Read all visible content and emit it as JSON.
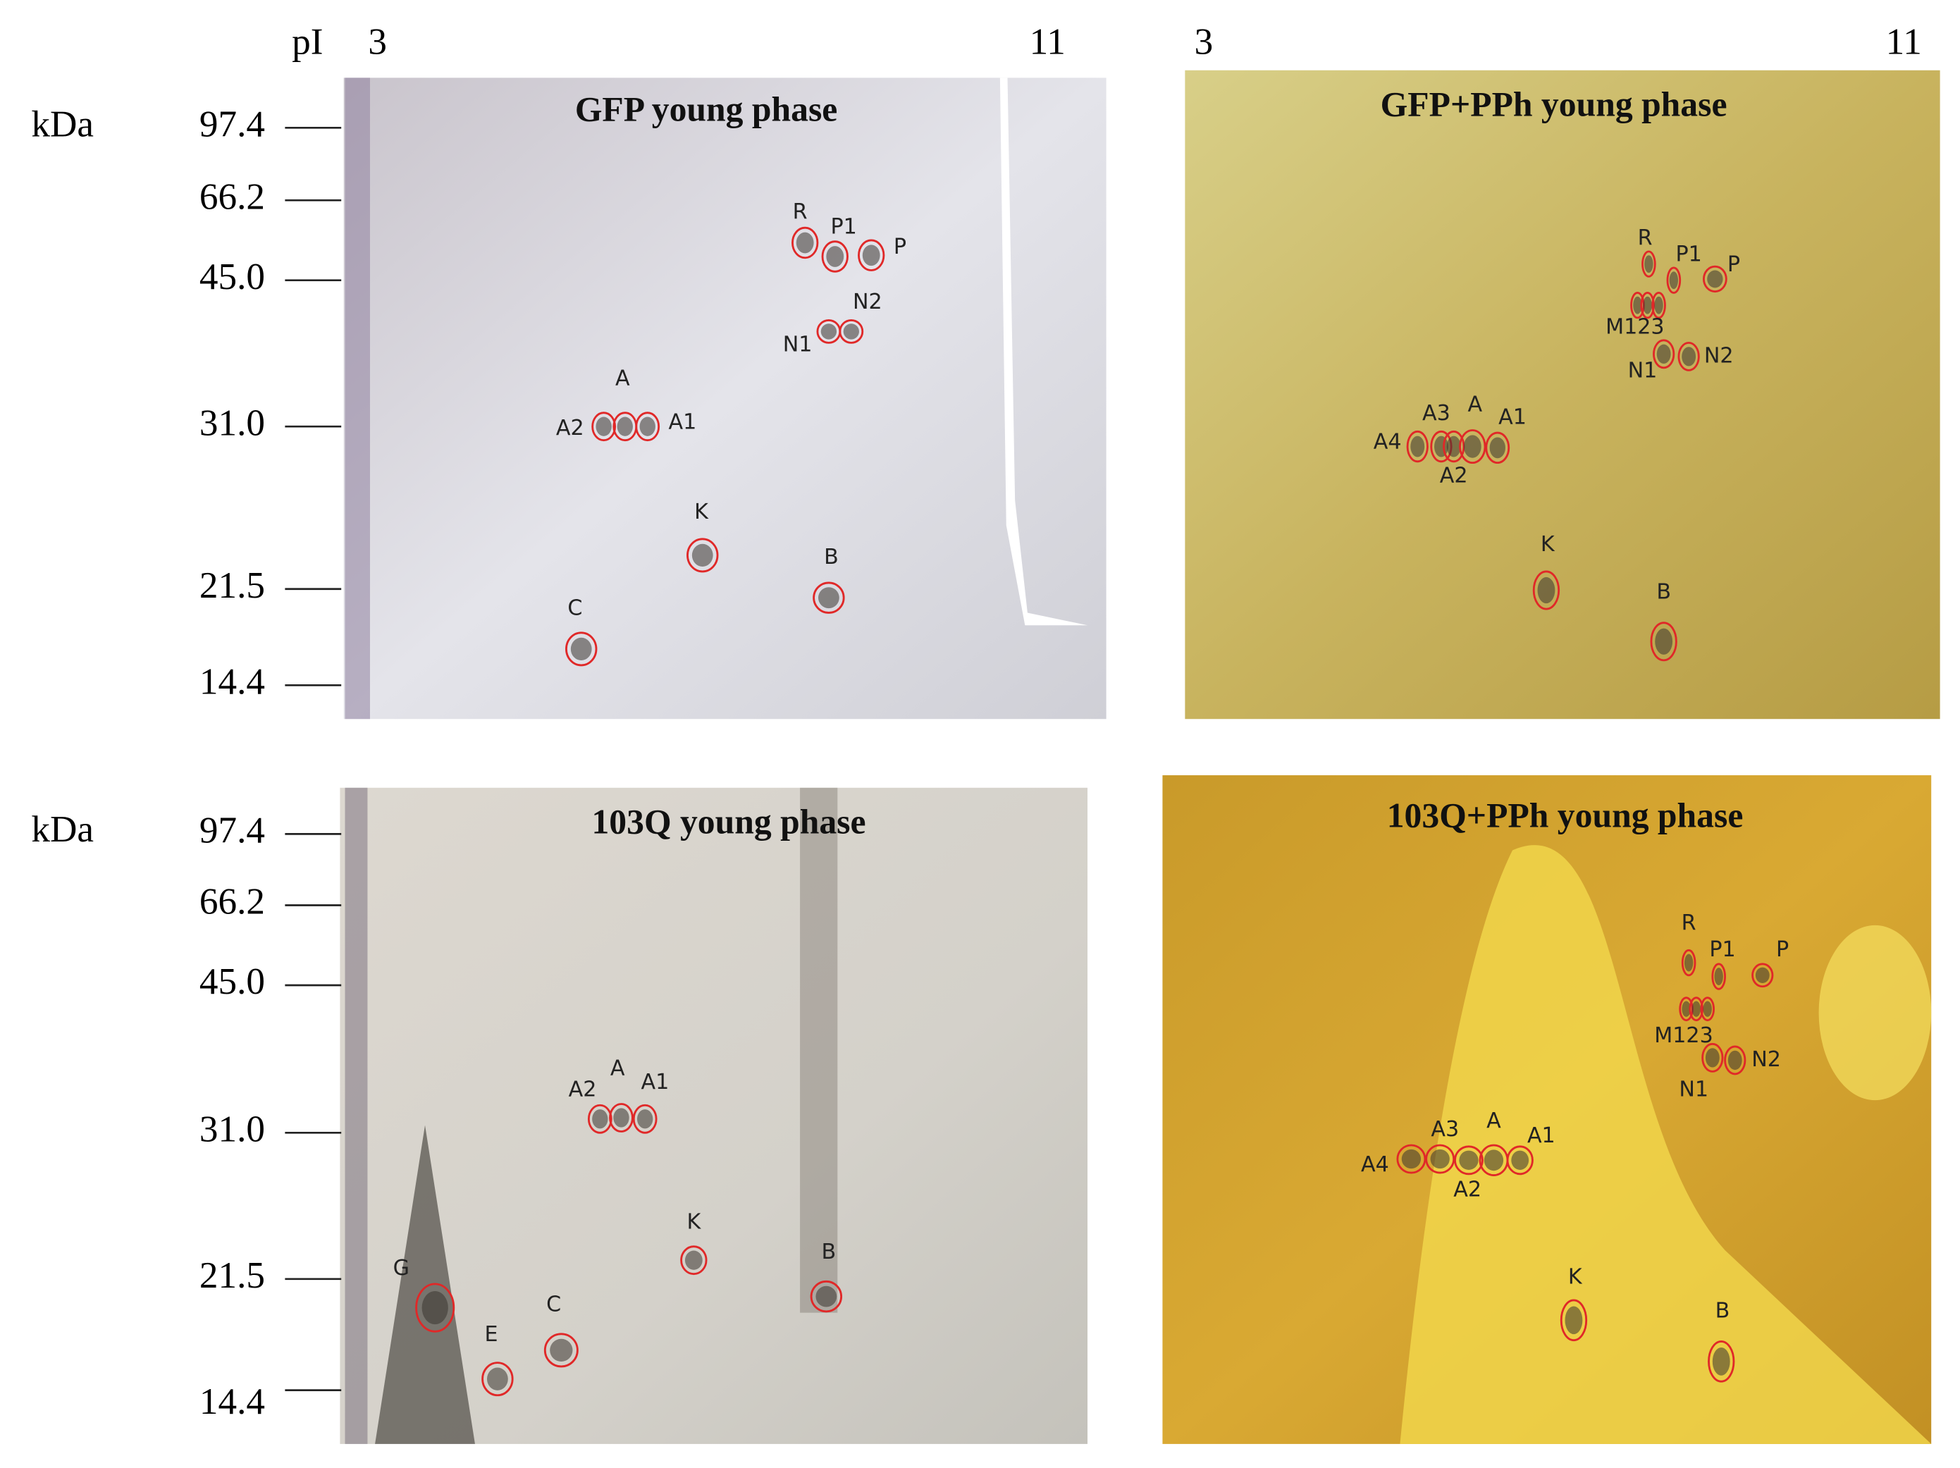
{
  "pi": {
    "label": "pI",
    "ends": [
      [
        "3",
        "11"
      ],
      [
        "3",
        "11"
      ]
    ]
  },
  "mw_axes": [
    {
      "label": "kDa",
      "ticks": [
        "97.4",
        "66.2",
        "45.0",
        "31.0",
        "21.5",
        "14.4"
      ]
    },
    {
      "label": "kDa",
      "ticks": [
        "97.4",
        "66.2",
        "45.0",
        "31.0",
        "21.5",
        "14.4"
      ]
    }
  ],
  "panels": [
    {
      "title": "GFP young phase",
      "spots": [
        "R",
        "P1",
        "P",
        "N2",
        "N1",
        "A",
        "A2",
        "A1",
        "K",
        "B",
        "C"
      ]
    },
    {
      "title": "GFP+PPh young phase",
      "spots": [
        "R",
        "P1",
        "P",
        "M123",
        "N1",
        "N2",
        "A3",
        "A",
        "A1",
        "A4",
        "A2",
        "K",
        "B"
      ]
    },
    {
      "title": "103Q young phase",
      "spots": [
        "A2",
        "A",
        "A1",
        "K",
        "B",
        "G",
        "C",
        "E"
      ]
    },
    {
      "title": "103Q+PPh young phase",
      "spots": [
        "R",
        "P1",
        "P",
        "M123",
        "N1",
        "N2",
        "A3",
        "A",
        "A1",
        "A4",
        "A2",
        "K",
        "B"
      ]
    }
  ]
}
